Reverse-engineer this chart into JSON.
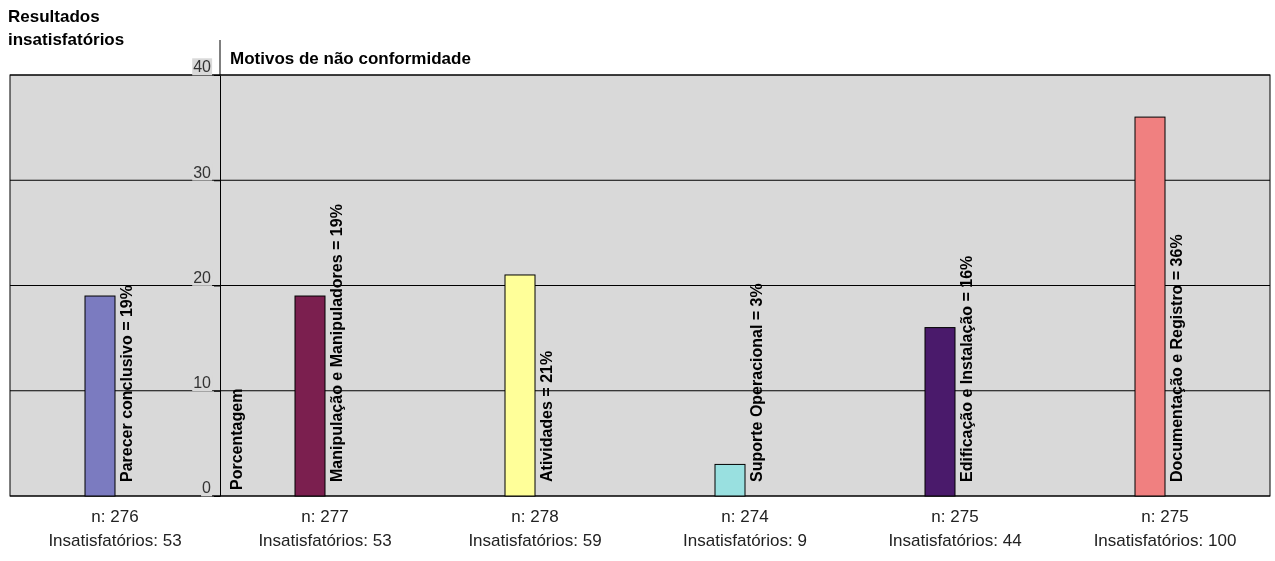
{
  "chart_data": {
    "type": "bar",
    "title": "Resultados insatisfatórios",
    "subtitle": "Motivos de não conformidade",
    "ylabel": "Porcentagem",
    "categories": [
      "n: 276\nInsatisfatórios: 53",
      "n: 277\nInsatisfatórios: 53",
      "n: 278\nInsatisfatórios: 59",
      "n: 274\nInsatisfatórios: 9",
      "n: 275\nInsatisfatórios: 44",
      "n: 275\nInsatisfatórios: 100"
    ],
    "values": [
      19,
      19,
      21,
      3,
      16,
      36
    ],
    "colors": [
      "#7b7bc0",
      "#7b1f4f",
      "#ffff99",
      "#99e0e0",
      "#4a1a6b",
      "#f08080"
    ],
    "value_labels": [
      "Parecer conclusivo = 19%",
      "Manipulação e Manipuladores = 19%",
      "Atividades = 21%",
      "Suporte Operacional = 3%",
      "Edificação e Instalação = 16%",
      "Documentação e Registro = 36%"
    ],
    "ylim": [
      0,
      40
    ],
    "yticks": [
      0,
      10,
      20,
      30,
      40
    ],
    "grid": "y"
  }
}
